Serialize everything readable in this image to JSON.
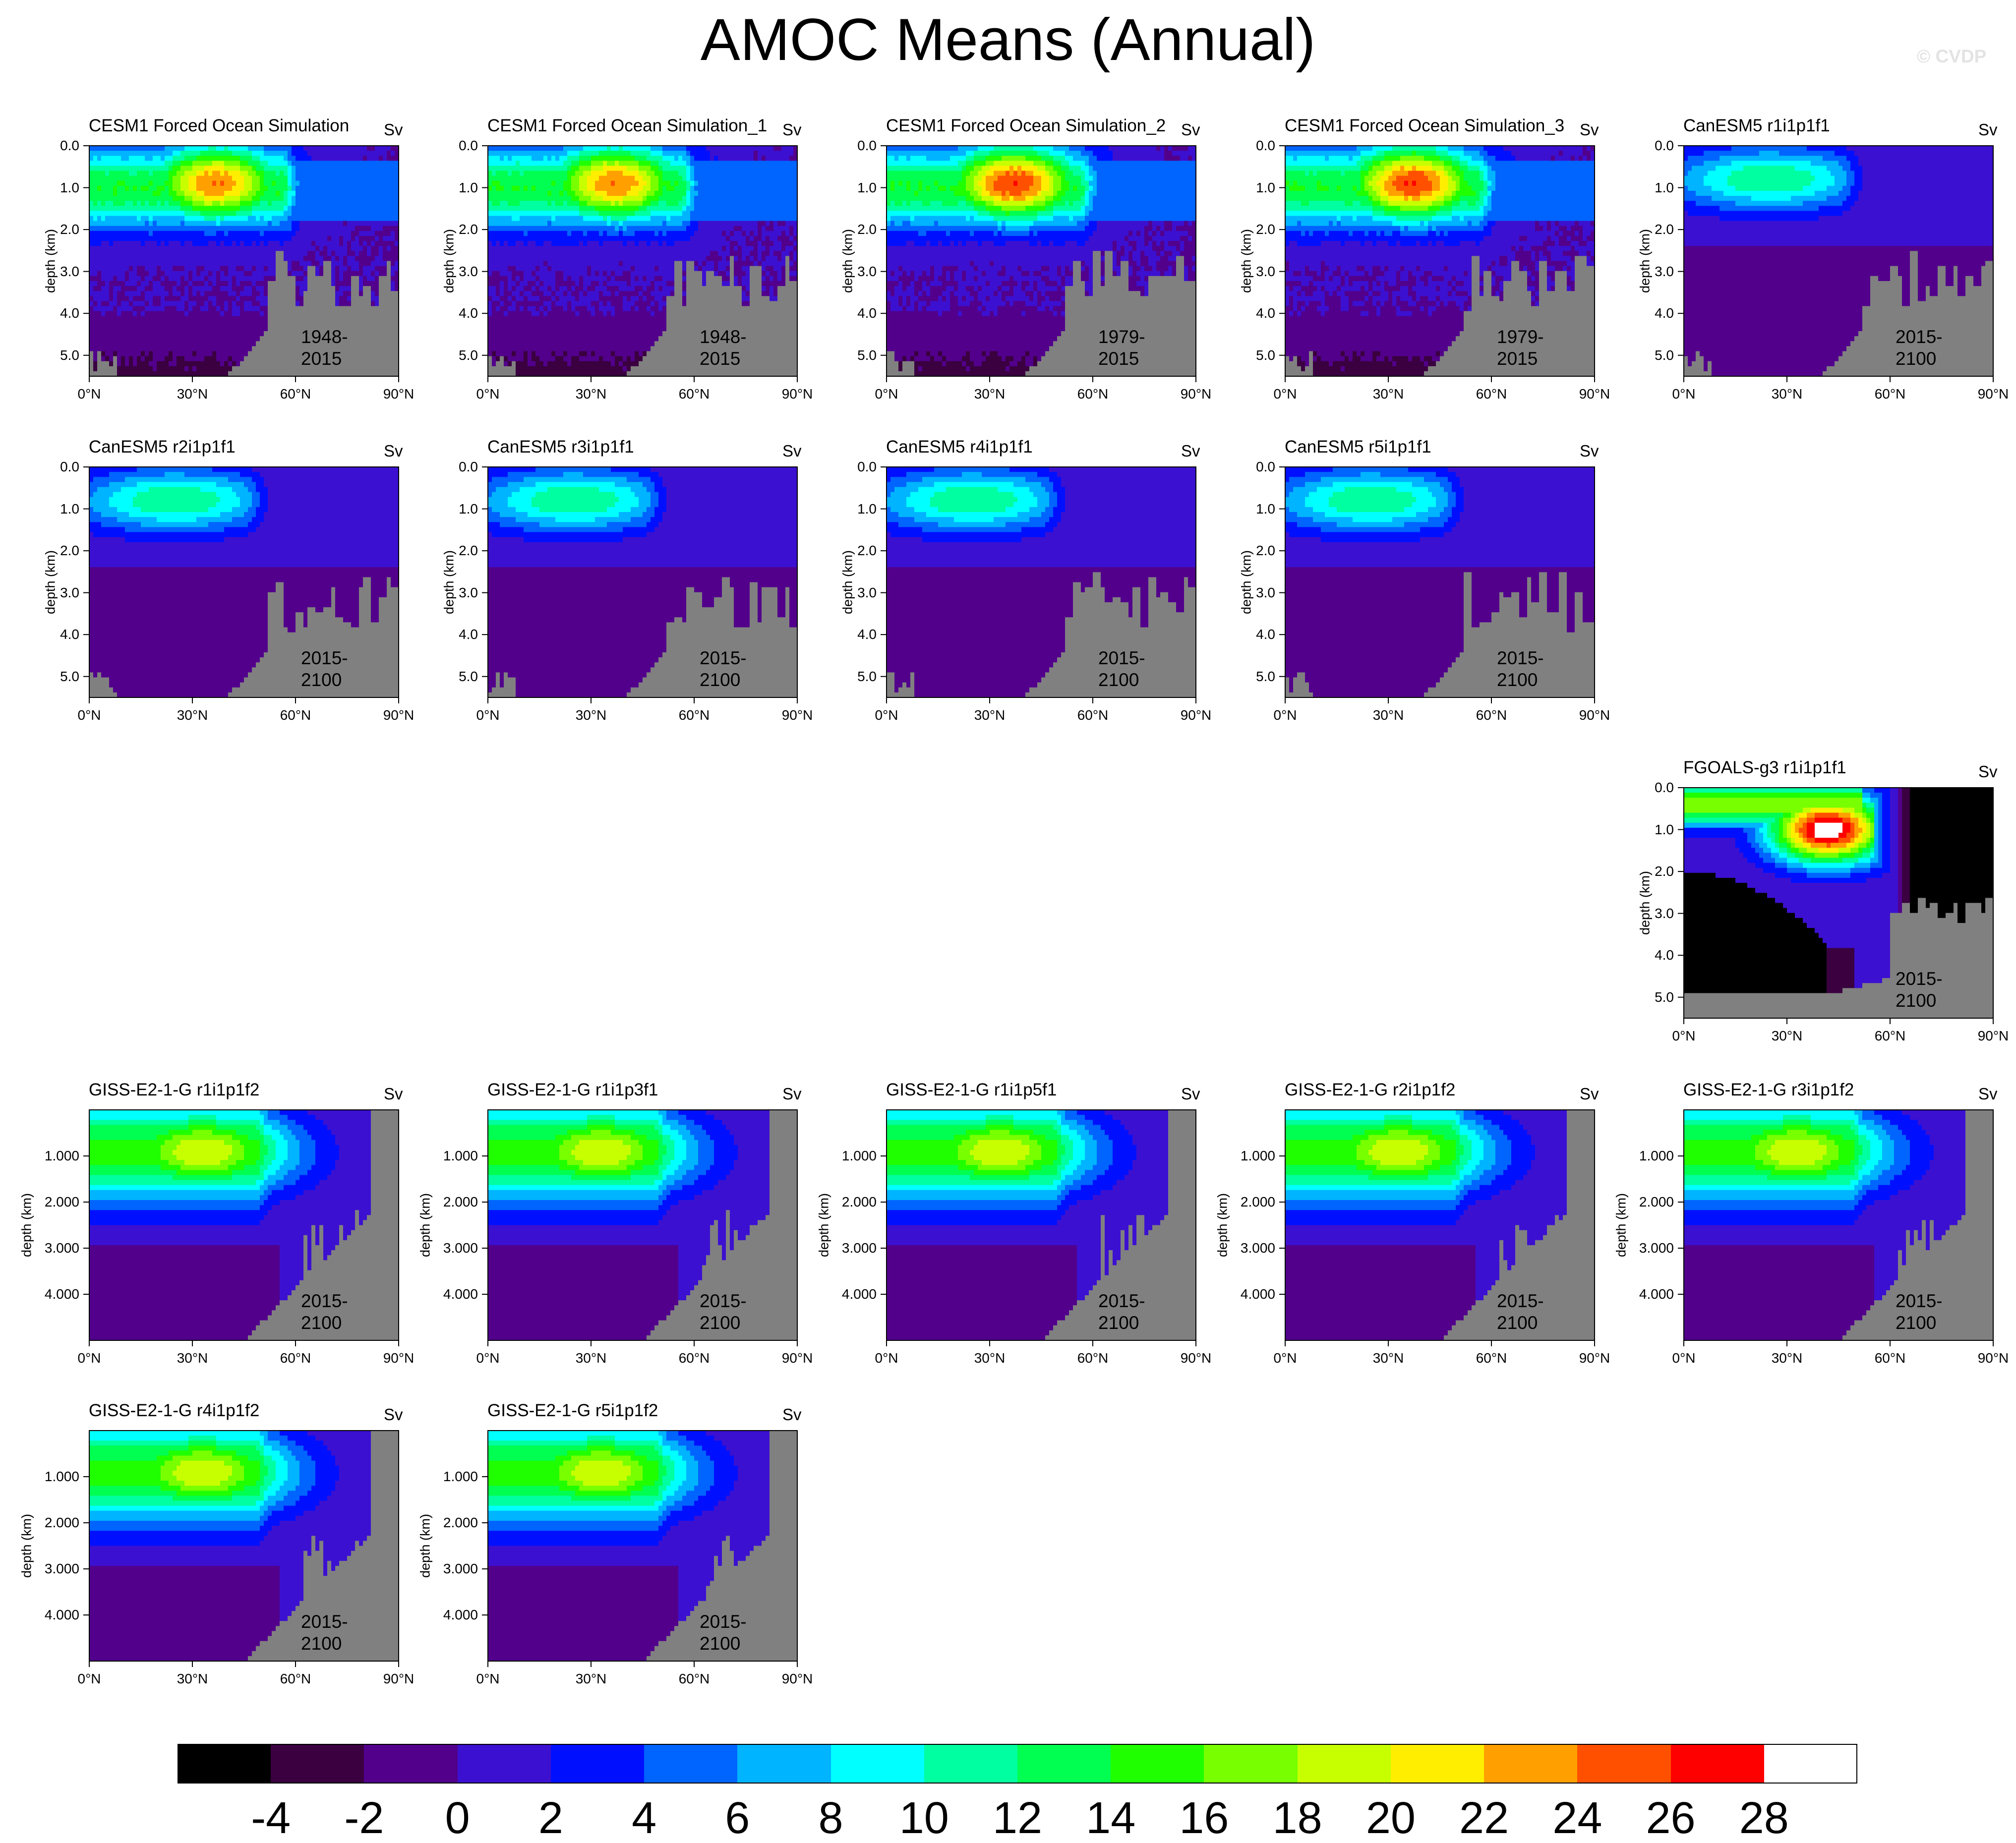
{
  "title": "AMOC Means (Annual)",
  "watermark": "© CVDP",
  "colors": {
    "missing": "#808080",
    "contour_line": "#000000"
  },
  "colorbar": {
    "levels": [
      -4,
      -2,
      0,
      2,
      4,
      6,
      8,
      10,
      12,
      14,
      16,
      18,
      20,
      22,
      24,
      26,
      28
    ],
    "labels": [
      "-4",
      "-2",
      "0",
      "2",
      "4",
      "6",
      "8",
      "10",
      "12",
      "14",
      "16",
      "18",
      "20",
      "22",
      "24",
      "26",
      "28"
    ],
    "colors": [
      "#000000",
      "#3a0040",
      "#52008c",
      "#3c10d0",
      "#0010ff",
      "#0064ff",
      "#00b4ff",
      "#00ffff",
      "#00ffa0",
      "#00ff50",
      "#20ff00",
      "#78ff00",
      "#c8ff00",
      "#ffee00",
      "#ffa000",
      "#ff5000",
      "#ff0000",
      "#ffffff"
    ]
  },
  "chart_data": [
    {
      "type": "heatmap",
      "title": "CESM1 Forced Ocean Simulation",
      "unit": "Sv",
      "period": "1948-2015",
      "ylabel": "depth (km)",
      "yticks": [
        "0.0",
        "1.0",
        "2.0",
        "3.0",
        "4.0",
        "5.0"
      ],
      "xticks": [
        "0°N",
        "30°N",
        "60°N",
        "90°N"
      ],
      "xlim": [
        0,
        90
      ],
      "ylim": [
        0,
        5.5
      ],
      "max_sv": 24,
      "core_depth_km": 0.9,
      "core_lat": 37,
      "style": "cesm"
    },
    {
      "type": "heatmap",
      "title": "CESM1 Forced Ocean Simulation_1",
      "unit": "Sv",
      "period": "1948-2015",
      "ylabel": "depth (km)",
      "yticks": [
        "0.0",
        "1.0",
        "2.0",
        "3.0",
        "4.0",
        "5.0"
      ],
      "xticks": [
        "0°N",
        "30°N",
        "60°N",
        "90°N"
      ],
      "xlim": [
        0,
        90
      ],
      "ylim": [
        0,
        5.5
      ],
      "max_sv": 24,
      "core_depth_km": 0.9,
      "core_lat": 37,
      "style": "cesm"
    },
    {
      "type": "heatmap",
      "title": "CESM1 Forced Ocean Simulation_2",
      "unit": "Sv",
      "period": "1979-2015",
      "ylabel": "depth (km)",
      "yticks": [
        "0.0",
        "1.0",
        "2.0",
        "3.0",
        "4.0",
        "5.0"
      ],
      "xticks": [
        "0°N",
        "30°N",
        "60°N",
        "90°N"
      ],
      "xlim": [
        0,
        90
      ],
      "ylim": [
        0,
        5.5
      ],
      "max_sv": 26,
      "core_depth_km": 0.9,
      "core_lat": 37,
      "style": "cesm"
    },
    {
      "type": "heatmap",
      "title": "CESM1 Forced Ocean Simulation_3",
      "unit": "Sv",
      "period": "1979-2015",
      "ylabel": "depth (km)",
      "yticks": [
        "0.0",
        "1.0",
        "2.0",
        "3.0",
        "4.0",
        "5.0"
      ],
      "xticks": [
        "0°N",
        "30°N",
        "60°N",
        "90°N"
      ],
      "xlim": [
        0,
        90
      ],
      "ylim": [
        0,
        5.5
      ],
      "max_sv": 26,
      "core_depth_km": 0.9,
      "core_lat": 37,
      "style": "cesm"
    },
    {
      "type": "heatmap",
      "title": "CanESM5 r1i1p1f1",
      "unit": "Sv",
      "period": "2015-2100",
      "ylabel": "depth (km)",
      "yticks": [
        "0.0",
        "1.0",
        "2.0",
        "3.0",
        "4.0",
        "5.0"
      ],
      "xticks": [
        "0°N",
        "30°N",
        "60°N",
        "90°N"
      ],
      "xlim": [
        0,
        90
      ],
      "ylim": [
        0,
        5.5
      ],
      "max_sv": 12,
      "core_depth_km": 0.8,
      "core_lat": 25,
      "style": "canesm"
    },
    {
      "type": "heatmap",
      "title": "CanESM5 r2i1p1f1",
      "unit": "Sv",
      "period": "2015-2100",
      "ylabel": "depth (km)",
      "yticks": [
        "0.0",
        "1.0",
        "2.0",
        "3.0",
        "4.0",
        "5.0"
      ],
      "xticks": [
        "0°N",
        "30°N",
        "60°N",
        "90°N"
      ],
      "xlim": [
        0,
        90
      ],
      "ylim": [
        0,
        5.5
      ],
      "max_sv": 12,
      "core_depth_km": 0.8,
      "core_lat": 25,
      "style": "canesm"
    },
    {
      "type": "heatmap",
      "title": "CanESM5 r3i1p1f1",
      "unit": "Sv",
      "period": "2015-2100",
      "ylabel": "depth (km)",
      "yticks": [
        "0.0",
        "1.0",
        "2.0",
        "3.0",
        "4.0",
        "5.0"
      ],
      "xticks": [
        "0°N",
        "30°N",
        "60°N",
        "90°N"
      ],
      "xlim": [
        0,
        90
      ],
      "ylim": [
        0,
        5.5
      ],
      "max_sv": 12,
      "core_depth_km": 0.8,
      "core_lat": 25,
      "style": "canesm"
    },
    {
      "type": "heatmap",
      "title": "CanESM5 r4i1p1f1",
      "unit": "Sv",
      "period": "2015-2100",
      "ylabel": "depth (km)",
      "yticks": [
        "0.0",
        "1.0",
        "2.0",
        "3.0",
        "4.0",
        "5.0"
      ],
      "xticks": [
        "0°N",
        "30°N",
        "60°N",
        "90°N"
      ],
      "xlim": [
        0,
        90
      ],
      "ylim": [
        0,
        5.5
      ],
      "max_sv": 12,
      "core_depth_km": 0.8,
      "core_lat": 25,
      "style": "canesm"
    },
    {
      "type": "heatmap",
      "title": "CanESM5 r5i1p1f1",
      "unit": "Sv",
      "period": "2015-2100",
      "ylabel": "depth (km)",
      "yticks": [
        "0.0",
        "1.0",
        "2.0",
        "3.0",
        "4.0",
        "5.0"
      ],
      "xticks": [
        "0°N",
        "30°N",
        "60°N",
        "90°N"
      ],
      "xlim": [
        0,
        90
      ],
      "ylim": [
        0,
        5.5
      ],
      "max_sv": 12,
      "core_depth_km": 0.8,
      "core_lat": 25,
      "style": "canesm"
    },
    {
      "type": "heatmap",
      "title": "FGOALS-g3 r1i1p1f1",
      "unit": "Sv",
      "period": "2015-2100",
      "ylabel": "depth (km)",
      "yticks": [
        "0.0",
        "1.0",
        "2.0",
        "3.0",
        "4.0",
        "5.0"
      ],
      "xticks": [
        "0°N",
        "30°N",
        "60°N",
        "90°N"
      ],
      "xlim": [
        0,
        90
      ],
      "ylim": [
        0,
        5.5
      ],
      "max_sv": 30,
      "core_depth_km": 1.0,
      "core_lat": 42,
      "style": "fgoals"
    },
    {
      "type": "heatmap",
      "title": "GISS-E2-1-G r1i1p1f2",
      "unit": "Sv",
      "period": "2015-2100",
      "ylabel": "depth (km)",
      "yticks": [
        "1.000",
        "2.000",
        "3.000",
        "4.000"
      ],
      "xticks": [
        "0°N",
        "30°N",
        "60°N",
        "90°N"
      ],
      "xlim": [
        0,
        90
      ],
      "ylim": [
        0,
        5.0
      ],
      "max_sv": 20,
      "core_depth_km": 0.9,
      "core_lat": 33,
      "style": "giss"
    },
    {
      "type": "heatmap",
      "title": "GISS-E2-1-G r1i1p3f1",
      "unit": "Sv",
      "period": "2015-2100",
      "ylabel": "depth (km)",
      "yticks": [
        "1.000",
        "2.000",
        "3.000",
        "4.000"
      ],
      "xticks": [
        "0°N",
        "30°N",
        "60°N",
        "90°N"
      ],
      "xlim": [
        0,
        90
      ],
      "ylim": [
        0,
        5.0
      ],
      "max_sv": 20,
      "core_depth_km": 0.9,
      "core_lat": 33,
      "style": "giss"
    },
    {
      "type": "heatmap",
      "title": "GISS-E2-1-G r1i1p5f1",
      "unit": "Sv",
      "period": "2015-2100",
      "ylabel": "depth (km)",
      "yticks": [
        "1.000",
        "2.000",
        "3.000",
        "4.000"
      ],
      "xticks": [
        "0°N",
        "30°N",
        "60°N",
        "90°N"
      ],
      "xlim": [
        0,
        90
      ],
      "ylim": [
        0,
        5.0
      ],
      "max_sv": 20,
      "core_depth_km": 0.9,
      "core_lat": 33,
      "style": "giss"
    },
    {
      "type": "heatmap",
      "title": "GISS-E2-1-G r2i1p1f2",
      "unit": "Sv",
      "period": "2015-2100",
      "ylabel": "depth (km)",
      "yticks": [
        "1.000",
        "2.000",
        "3.000",
        "4.000"
      ],
      "xticks": [
        "0°N",
        "30°N",
        "60°N",
        "90°N"
      ],
      "xlim": [
        0,
        90
      ],
      "ylim": [
        0,
        5.0
      ],
      "max_sv": 20,
      "core_depth_km": 0.9,
      "core_lat": 33,
      "style": "giss"
    },
    {
      "type": "heatmap",
      "title": "GISS-E2-1-G r3i1p1f2",
      "unit": "Sv",
      "period": "2015-2100",
      "ylabel": "depth (km)",
      "yticks": [
        "1.000",
        "2.000",
        "3.000",
        "4.000"
      ],
      "xticks": [
        "0°N",
        "30°N",
        "60°N",
        "90°N"
      ],
      "xlim": [
        0,
        90
      ],
      "ylim": [
        0,
        5.0
      ],
      "max_sv": 20,
      "core_depth_km": 0.9,
      "core_lat": 33,
      "style": "giss"
    },
    {
      "type": "heatmap",
      "title": "GISS-E2-1-G r4i1p1f2",
      "unit": "Sv",
      "period": "2015-2100",
      "ylabel": "depth (km)",
      "yticks": [
        "1.000",
        "2.000",
        "3.000",
        "4.000"
      ],
      "xticks": [
        "0°N",
        "30°N",
        "60°N",
        "90°N"
      ],
      "xlim": [
        0,
        90
      ],
      "ylim": [
        0,
        5.0
      ],
      "max_sv": 20,
      "core_depth_km": 0.9,
      "core_lat": 33,
      "style": "giss"
    },
    {
      "type": "heatmap",
      "title": "GISS-E2-1-G r5i1p1f2",
      "unit": "Sv",
      "period": "2015-2100",
      "ylabel": "depth (km)",
      "yticks": [
        "1.000",
        "2.000",
        "3.000",
        "4.000"
      ],
      "xticks": [
        "0°N",
        "30°N",
        "60°N",
        "90°N"
      ],
      "xlim": [
        0,
        90
      ],
      "ylim": [
        0,
        5.0
      ],
      "max_sv": 20,
      "core_depth_km": 0.9,
      "core_lat": 33,
      "style": "giss"
    }
  ]
}
